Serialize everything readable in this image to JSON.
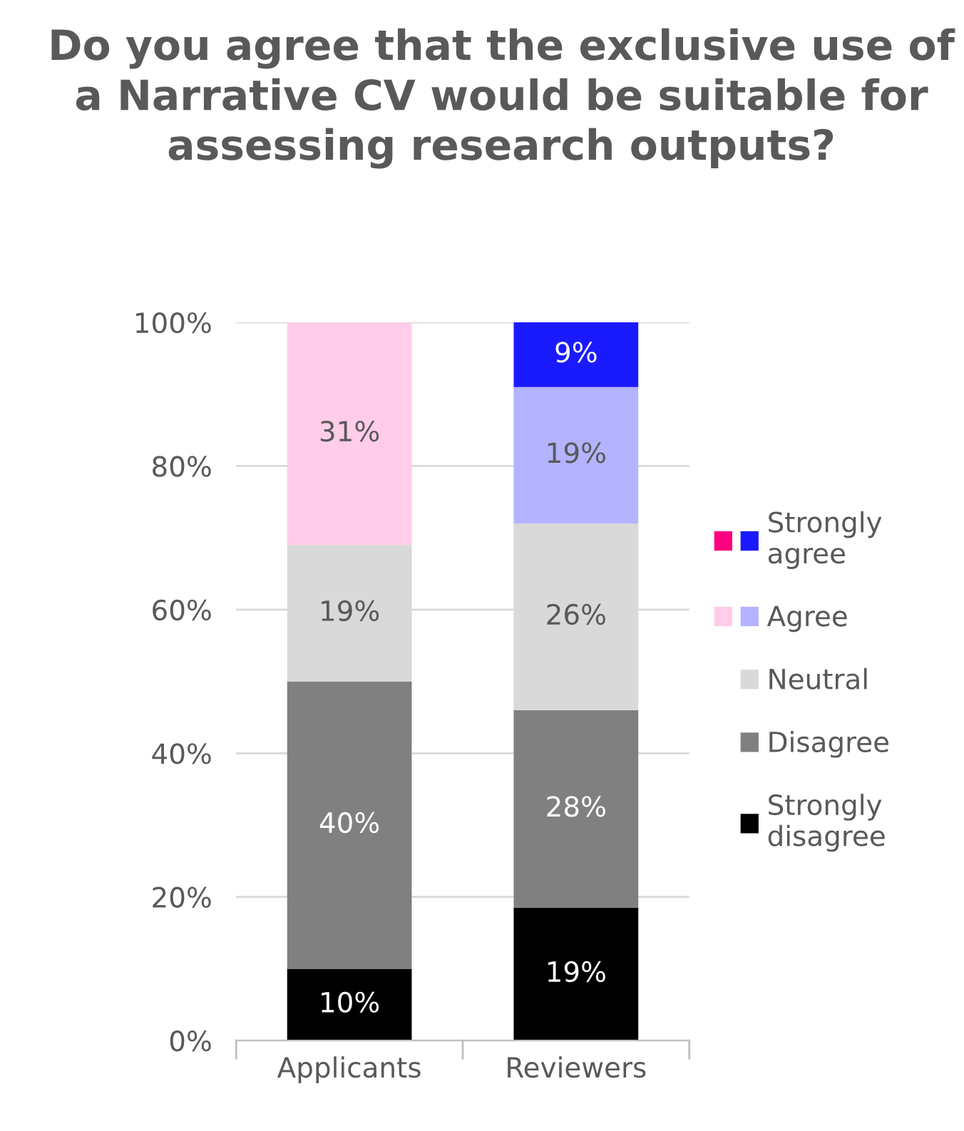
{
  "chart_data": {
    "type": "bar",
    "title": "Do you agree that the exclusive use of a Narrative CV would be suitable for assessing research outputs?",
    "categories": [
      "Applicants",
      "Reviewers"
    ],
    "stacked": true,
    "series": [
      {
        "name": "Strongly disagree",
        "colors": [
          "#000000",
          "#000000"
        ],
        "values": [
          10,
          18.5
        ],
        "value_labels": [
          "10%",
          "19%"
        ]
      },
      {
        "name": "Disagree",
        "colors": [
          "#808080",
          "#808080"
        ],
        "values": [
          40,
          27.5
        ],
        "value_labels": [
          "40%",
          "28%"
        ]
      },
      {
        "name": "Neutral",
        "colors": [
          "#d9d9d9",
          "#d9d9d9"
        ],
        "values": [
          19,
          26
        ],
        "value_labels": [
          "19%",
          "26%"
        ]
      },
      {
        "name": "Agree",
        "colors": [
          "#ffcce9",
          "#b3b3ff"
        ],
        "values": [
          31,
          19
        ],
        "value_labels": [
          "31%",
          "19%"
        ]
      },
      {
        "name": "Strongly agree",
        "colors": [
          "#ff0080",
          "#1a1aff"
        ],
        "values": [
          0,
          9
        ],
        "value_labels": [
          null,
          "9%"
        ]
      }
    ],
    "ylim": [
      0,
      100
    ],
    "yticks": [
      {
        "value": 0,
        "label": "0%"
      },
      {
        "value": 20,
        "label": "20%"
      },
      {
        "value": 40,
        "label": "40%"
      },
      {
        "value": 60,
        "label": "60%"
      },
      {
        "value": 80,
        "label": "80%"
      },
      {
        "value": 100,
        "label": "100%"
      }
    ],
    "grid": "y",
    "legend": "right"
  }
}
